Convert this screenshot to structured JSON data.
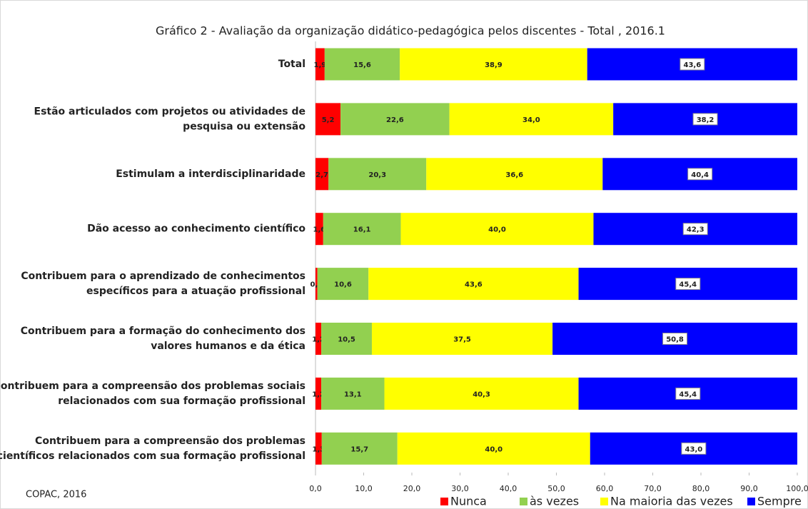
{
  "chart_data": {
    "type": "stacked-barh",
    "title": "Gráfico 2 - Avaliação da organização didático-pedagógica pelos discentes - Total , 2016.1",
    "source": "COPAC, 2016",
    "categories": [
      "Total",
      "Estão articulados com projetos ou atividades de\npesquisa ou extensão",
      "Estimulam a interdisciplinaridade",
      "Dão acesso ao conhecimento científico",
      "Contribuem para o aprendizado de conhecimentos\nespecíficos para a atuação profissional",
      "Contribuem para a formação do conhecimento dos\nvalores humanos e da ética",
      "Contribuem para a compreensão dos problemas sociais\nrelacionados com sua formação profissional",
      "Contribuem para a compreensão dos problemas\ncientíficos relacionados com sua formação profissional"
    ],
    "series": [
      {
        "name": "Nunca",
        "color": "#ff0000",
        "values": [
          1.9,
          5.2,
          2.7,
          1.6,
          0.4,
          1.2,
          1.2,
          1.3
        ],
        "value_labels": [
          "1,9",
          "5,2",
          "2,7",
          "1,6",
          "0,4",
          "1,2",
          "1,2",
          "1,3"
        ]
      },
      {
        "name": "às vezes",
        "color": "#92d050",
        "values": [
          15.6,
          22.6,
          20.3,
          16.1,
          10.6,
          10.5,
          13.1,
          15.7
        ],
        "value_labels": [
          "15,6",
          "22,6",
          "20,3",
          "16,1",
          "10,6",
          "10,5",
          "13,1",
          "15,7"
        ]
      },
      {
        "name": "Na maioria das vezes",
        "color": "#ffff00",
        "values": [
          38.9,
          34.0,
          36.6,
          40.0,
          43.6,
          37.5,
          40.3,
          40.0
        ],
        "value_labels": [
          "38,9",
          "34,0",
          "36,6",
          "40,0",
          "43,6",
          "37,5",
          "40,3",
          "40,0"
        ]
      },
      {
        "name": "Sempre",
        "color": "#0000ff",
        "values": [
          43.6,
          38.2,
          40.4,
          42.3,
          45.4,
          50.8,
          45.4,
          43.0
        ],
        "value_labels": [
          "43,6",
          "38,2",
          "40,4",
          "42,3",
          "45,4",
          "50,8",
          "45,4",
          "43,0"
        ]
      }
    ],
    "xlim": [
      0,
      100
    ],
    "xticks": [
      {
        "value": 0,
        "label": "0,0"
      },
      {
        "value": 10,
        "label": "10,0"
      },
      {
        "value": 20,
        "label": "20,0"
      },
      {
        "value": 30,
        "label": "30,0"
      },
      {
        "value": 40,
        "label": "40,0"
      },
      {
        "value": 50,
        "label": "50,0"
      },
      {
        "value": 60,
        "label": "60,0"
      },
      {
        "value": 70,
        "label": "70,0"
      },
      {
        "value": 80,
        "label": "80,0"
      },
      {
        "value": 90,
        "label": "90,0"
      },
      {
        "value": 100,
        "label": "100,0"
      }
    ],
    "legend": "bottom"
  }
}
